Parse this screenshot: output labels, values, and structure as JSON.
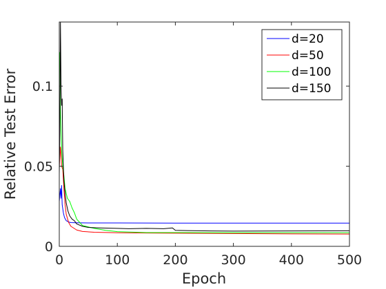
{
  "chart_data": {
    "type": "line",
    "xlabel": "Epoch",
    "ylabel": "Relative Test Error",
    "xlim": [
      0,
      500
    ],
    "ylim": [
      0,
      0.14
    ],
    "xticks": [
      0,
      100,
      200,
      300,
      400,
      500
    ],
    "xtick_labels": [
      "0",
      "100",
      "200",
      "300",
      "400",
      "500"
    ],
    "yticks": [
      0,
      0.05,
      0.1
    ],
    "ytick_labels": [
      "0",
      "0.05",
      "0.1"
    ],
    "grid": false,
    "legend_position": "top-right",
    "series": [
      {
        "name": "d=20",
        "color": "#0000ff",
        "x": [
          0,
          2,
          3,
          4,
          5,
          7,
          9,
          12,
          16,
          20,
          30,
          50,
          100,
          200,
          300,
          400,
          500
        ],
        "y": [
          0.028,
          0.036,
          0.03,
          0.038,
          0.026,
          0.021,
          0.018,
          0.016,
          0.0152,
          0.0148,
          0.0147,
          0.0146,
          0.0146,
          0.0145,
          0.0145,
          0.0145,
          0.0145
        ]
      },
      {
        "name": "d=50",
        "color": "#ff0000",
        "x": [
          0,
          2,
          4,
          6,
          8,
          10,
          12,
          16,
          20,
          30,
          40,
          60,
          100,
          150,
          200,
          300,
          400,
          500
        ],
        "y": [
          0.05,
          0.062,
          0.05,
          0.048,
          0.036,
          0.026,
          0.02,
          0.015,
          0.0125,
          0.0102,
          0.0093,
          0.0088,
          0.0085,
          0.0083,
          0.0082,
          0.008,
          0.0078,
          0.0077
        ]
      },
      {
        "name": "d=100",
        "color": "#00ff00",
        "x": [
          0,
          1,
          2,
          3,
          4,
          6,
          8,
          10,
          14,
          18,
          22,
          26,
          30,
          40,
          60,
          80,
          100,
          150,
          200,
          300,
          400,
          500
        ],
        "y": [
          0.118,
          0.121,
          0.085,
          0.072,
          0.06,
          0.05,
          0.044,
          0.036,
          0.03,
          0.028,
          0.024,
          0.021,
          0.017,
          0.013,
          0.0112,
          0.01,
          0.0092,
          0.0086,
          0.0086,
          0.0085,
          0.0085,
          0.0085
        ]
      },
      {
        "name": "d=150",
        "color": "#000000",
        "x": [
          0,
          1,
          2,
          3,
          4,
          5,
          6,
          7,
          8,
          10,
          12,
          15,
          18,
          22,
          26,
          30,
          40,
          50,
          70,
          100,
          120,
          150,
          180,
          195,
          200,
          220,
          260,
          300,
          400,
          500
        ],
        "y": [
          0.045,
          0.072,
          0.14,
          0.1,
          0.088,
          0.092,
          0.06,
          0.05,
          0.041,
          0.033,
          0.027,
          0.022,
          0.019,
          0.017,
          0.016,
          0.014,
          0.0125,
          0.0118,
          0.0115,
          0.0112,
          0.011,
          0.0112,
          0.011,
          0.0115,
          0.01,
          0.0098,
          0.0096,
          0.0095,
          0.0096,
          0.0097
        ]
      }
    ]
  }
}
